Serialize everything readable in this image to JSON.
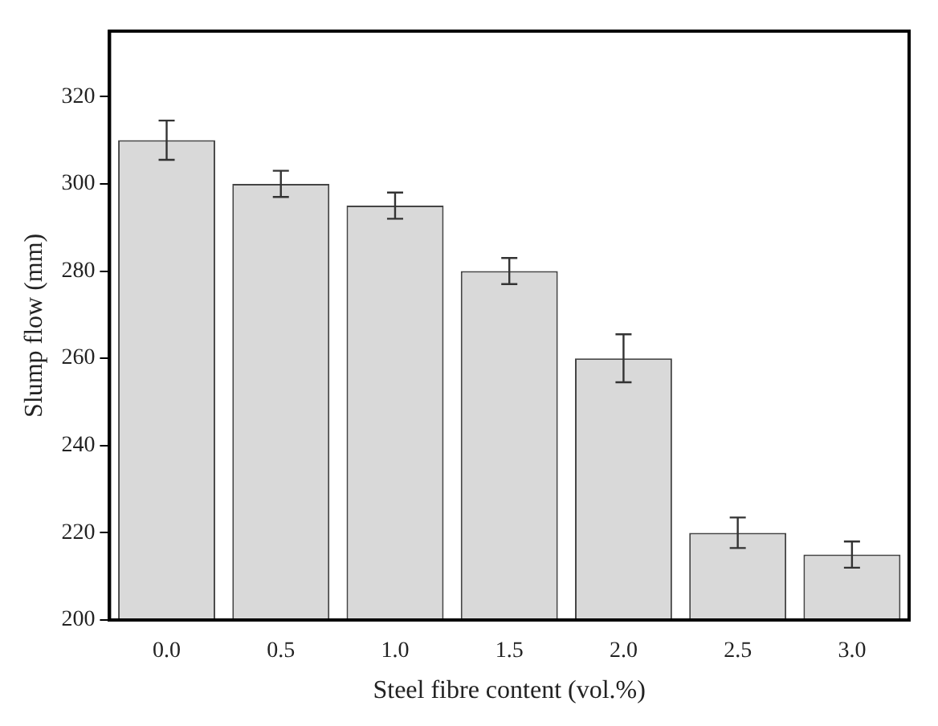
{
  "chart_data": {
    "type": "bar",
    "xlabel": "Steel fibre content (vol.%)",
    "ylabel": "Slump flow (mm)",
    "categories": [
      "0.0",
      "0.5",
      "1.0",
      "1.5",
      "2.0",
      "2.5",
      "3.0"
    ],
    "values": [
      310,
      300,
      295,
      280,
      260,
      220,
      215
    ],
    "errors": [
      4.5,
      3,
      3,
      3,
      5.5,
      3.5,
      3
    ],
    "color": "#d9d9d9",
    "ylim": [
      200,
      335
    ],
    "yticks": [
      200,
      220,
      240,
      260,
      280,
      300,
      320
    ],
    "grid": false,
    "legend": false
  }
}
